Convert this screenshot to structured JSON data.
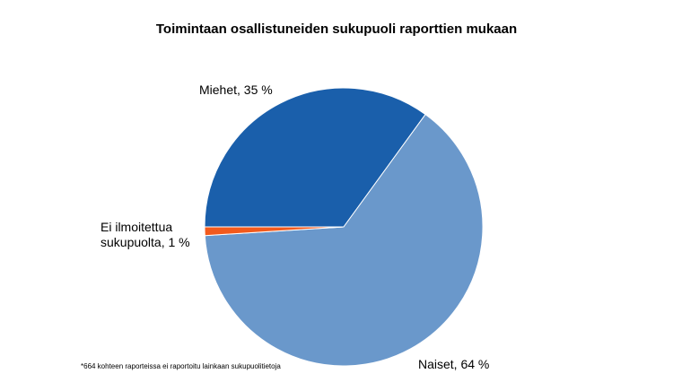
{
  "chart_data": {
    "type": "pie",
    "title": "Toimintaan osallistuneiden sukupuoli raporttien mukaan",
    "categories": [
      "Miehet",
      "Naiset",
      "Ei ilmoitettua sukupuolta"
    ],
    "values": [
      35,
      64,
      1
    ],
    "value_labels": [
      "Miehet, 35 %",
      "Naiset, 64 %",
      "Ei ilmoitettua sukupuolta, 1 %"
    ],
    "colors": [
      "#1a5fab",
      "#6a98cb",
      "#f25a1d"
    ],
    "footnote": "*664 kohteen raporteissa ei raportoitu lainkaan sukupuolitietoja"
  }
}
